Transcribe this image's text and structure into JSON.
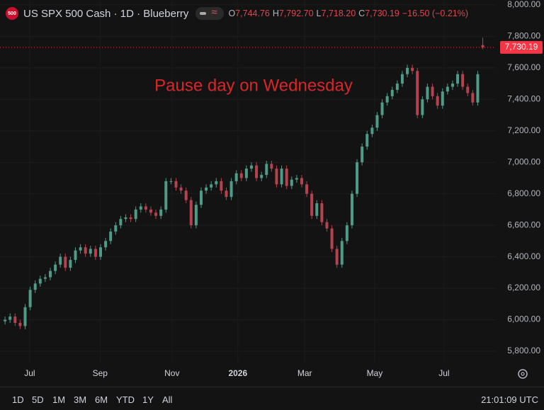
{
  "header": {
    "badge": "500",
    "title": "US SPX 500 Cash · 1D · Blueberry",
    "ohlc": [
      {
        "key": "O",
        "value": "7,744.76"
      },
      {
        "key": "H",
        "value": "7,792.70"
      },
      {
        "key": "L",
        "value": "7,718.20"
      },
      {
        "key": "C",
        "value": "7,730.19"
      }
    ],
    "change": "−16.50 (−0.21%)"
  },
  "chart_data": {
    "type": "candlestick",
    "annotation": "Pause day on Wednesday",
    "close_label": "7,730.19",
    "up_color": "#4e9b88",
    "down_color": "#b5434f",
    "label_color": "#f23645",
    "grid": true,
    "x": [
      0,
      1,
      2,
      3,
      4,
      5,
      6,
      7,
      8,
      9,
      10,
      11,
      12,
      13,
      14,
      15,
      16,
      17,
      18,
      19,
      20,
      21,
      22,
      23,
      24,
      25,
      26,
      27,
      28,
      29,
      30,
      31,
      32,
      33,
      34,
      35,
      36,
      37,
      38,
      39,
      40,
      41,
      42,
      43,
      44,
      45,
      46,
      47,
      48,
      49,
      50,
      51,
      52,
      53,
      54,
      55,
      56,
      57,
      58,
      59,
      60,
      61,
      62,
      63,
      64,
      65,
      66,
      67,
      68,
      69,
      70,
      71,
      72,
      73,
      74,
      75,
      76,
      77,
      78,
      79,
      80,
      81,
      82,
      83,
      84,
      85,
      86,
      87,
      88,
      89,
      90,
      91,
      92,
      93,
      94,
      95
    ],
    "open": [
      5990,
      6000,
      6020,
      5980,
      5960,
      6080,
      6190,
      6230,
      6260,
      6270,
      6310,
      6350,
      6400,
      6330,
      6380,
      6440,
      6460,
      6420,
      6450,
      6400,
      6460,
      6500,
      6560,
      6600,
      6640,
      6650,
      6640,
      6700,
      6720,
      6700,
      6680,
      6660,
      6700,
      6880,
      6880,
      6840,
      6820,
      6760,
      6600,
      6730,
      6820,
      6840,
      6860,
      6880,
      6820,
      6780,
      6880,
      6930,
      6900,
      6960,
      6980,
      6900,
      6920,
      6990,
      6960,
      6860,
      6960,
      6850,
      6890,
      6900,
      6860,
      6800,
      6660,
      6740,
      6620,
      6580,
      6450,
      6350,
      6500,
      6600,
      6800,
      7000,
      7100,
      7180,
      7220,
      7300,
      7380,
      7420,
      7460,
      7500,
      7560,
      7600,
      7580,
      7300,
      7400,
      7480,
      7420,
      7360,
      7450,
      7480,
      7500,
      7560,
      7480,
      7440,
      7380,
      7744.76
    ],
    "high": [
      6020,
      6040,
      6040,
      6000,
      6100,
      6210,
      6250,
      6280,
      6290,
      6330,
      6370,
      6420,
      6420,
      6400,
      6460,
      6480,
      6480,
      6470,
      6470,
      6480,
      6520,
      6580,
      6620,
      6660,
      6670,
      6670,
      6720,
      6740,
      6740,
      6720,
      6700,
      6720,
      6900,
      6900,
      6900,
      6860,
      6840,
      6780,
      6750,
      6840,
      6860,
      6880,
      6900,
      6900,
      6840,
      6900,
      6950,
      6950,
      6980,
      7000,
      7000,
      6940,
      7010,
      7010,
      6980,
      6980,
      6980,
      6910,
      6920,
      6920,
      6880,
      6820,
      6760,
      6760,
      6640,
      6600,
      6470,
      6520,
      6620,
      6820,
      7020,
      7120,
      7200,
      7240,
      7320,
      7400,
      7440,
      7480,
      7520,
      7580,
      7620,
      7620,
      7600,
      7420,
      7500,
      7500,
      7440,
      7470,
      7500,
      7520,
      7580,
      7580,
      7500,
      7460,
      7580,
      7792.7
    ],
    "low": [
      5970,
      5980,
      5960,
      5940,
      5940,
      6060,
      6170,
      6210,
      6240,
      6250,
      6290,
      6330,
      6310,
      6310,
      6360,
      6420,
      6400,
      6400,
      6380,
      6380,
      6440,
      6480,
      6540,
      6580,
      6620,
      6620,
      6620,
      6680,
      6680,
      6660,
      6640,
      6640,
      6680,
      6860,
      6820,
      6800,
      6740,
      6580,
      6580,
      6710,
      6800,
      6820,
      6840,
      6800,
      6760,
      6760,
      6860,
      6880,
      6880,
      6940,
      6880,
      6880,
      6900,
      6940,
      6840,
      6840,
      6830,
      6830,
      6870,
      6840,
      6780,
      6640,
      6640,
      6600,
      6560,
      6430,
      6330,
      6330,
      6480,
      6580,
      6780,
      6980,
      7080,
      7160,
      7200,
      7280,
      7360,
      7400,
      7440,
      7480,
      7540,
      7560,
      7280,
      7280,
      7380,
      7400,
      7340,
      7340,
      7430,
      7460,
      7480,
      7460,
      7420,
      7360,
      7360,
      7718.2
    ],
    "close": [
      6000,
      6020,
      5980,
      5960,
      6080,
      6190,
      6230,
      6260,
      6270,
      6310,
      6350,
      6400,
      6330,
      6380,
      6440,
      6460,
      6420,
      6450,
      6400,
      6460,
      6500,
      6560,
      6600,
      6640,
      6650,
      6640,
      6700,
      6720,
      6700,
      6680,
      6660,
      6700,
      6880,
      6880,
      6840,
      6820,
      6760,
      6600,
      6730,
      6820,
      6840,
      6860,
      6880,
      6820,
      6780,
      6880,
      6930,
      6900,
      6960,
      6980,
      6900,
      6920,
      6990,
      6960,
      6860,
      6960,
      6850,
      6890,
      6900,
      6860,
      6800,
      6660,
      6740,
      6620,
      6580,
      6450,
      6350,
      6500,
      6600,
      6800,
      7000,
      7100,
      7180,
      7220,
      7300,
      7380,
      7420,
      7460,
      7500,
      7560,
      7600,
      7580,
      7300,
      7400,
      7480,
      7420,
      7360,
      7450,
      7480,
      7500,
      7560,
      7480,
      7440,
      7380,
      7560,
      7730.19
    ],
    "xlim": [
      -1,
      97.6
    ],
    "xticks": [
      {
        "value": 4.9,
        "label": "Jul"
      },
      {
        "value": 18.9,
        "label": "Sep"
      },
      {
        "value": 33.2,
        "label": "Nov"
      },
      {
        "value": 46.3,
        "label": "2026"
      },
      {
        "value": 59.6,
        "label": "Mar"
      },
      {
        "value": 73.5,
        "label": "May"
      },
      {
        "value": 87.3,
        "label": "Jul"
      }
    ],
    "ylim": [
      5728,
      8031
    ],
    "yticks": [
      {
        "value": 5800,
        "label": "5,800.00"
      },
      {
        "value": 6000,
        "label": "6,000.00"
      },
      {
        "value": 6200,
        "label": "6,200.00"
      },
      {
        "value": 6400,
        "label": "6,400.00"
      },
      {
        "value": 6600,
        "label": "6,600.00"
      },
      {
        "value": 6800,
        "label": "6,800.00"
      },
      {
        "value": 7000,
        "label": "7,000.00"
      },
      {
        "value": 7200,
        "label": "7,200.00"
      },
      {
        "value": 7400,
        "label": "7,400.00"
      },
      {
        "value": 7600,
        "label": "7,600.00"
      },
      {
        "value": 7800,
        "label": "7,800.00"
      },
      {
        "value": 8000,
        "label": "8,000.00"
      }
    ]
  },
  "toolbar": {
    "ranges": [
      "1D",
      "5D",
      "1M",
      "3M",
      "6M",
      "YTD",
      "1Y",
      "All"
    ],
    "time": "21:01:09 UTC"
  }
}
